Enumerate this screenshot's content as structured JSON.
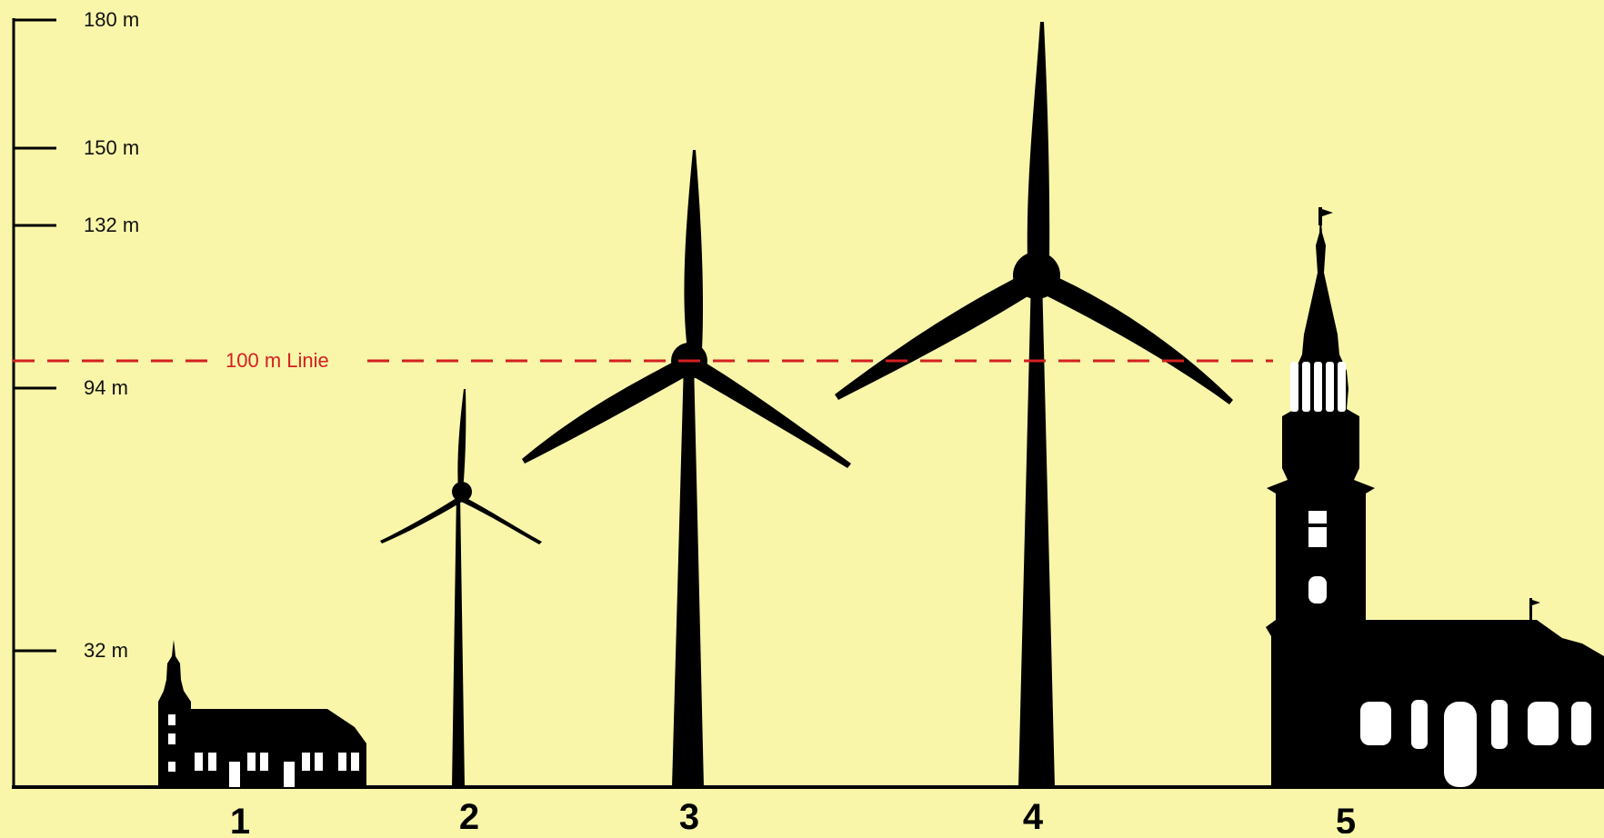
{
  "diagram": {
    "scale_labels": [
      "180 m",
      "150 m",
      "132 m",
      "94 m",
      "32 m"
    ],
    "reference_line": {
      "label": "100 m Linie",
      "color": "#d42020"
    },
    "objects": [
      {
        "number": "1",
        "kind": "small-church"
      },
      {
        "number": "2",
        "kind": "wind-turbine"
      },
      {
        "number": "3",
        "kind": "wind-turbine"
      },
      {
        "number": "4",
        "kind": "wind-turbine"
      },
      {
        "number": "5",
        "kind": "large-church"
      }
    ],
    "colors": {
      "background": "#f9f6aa",
      "silhouette": "#000000",
      "window": "#ffffff"
    }
  }
}
